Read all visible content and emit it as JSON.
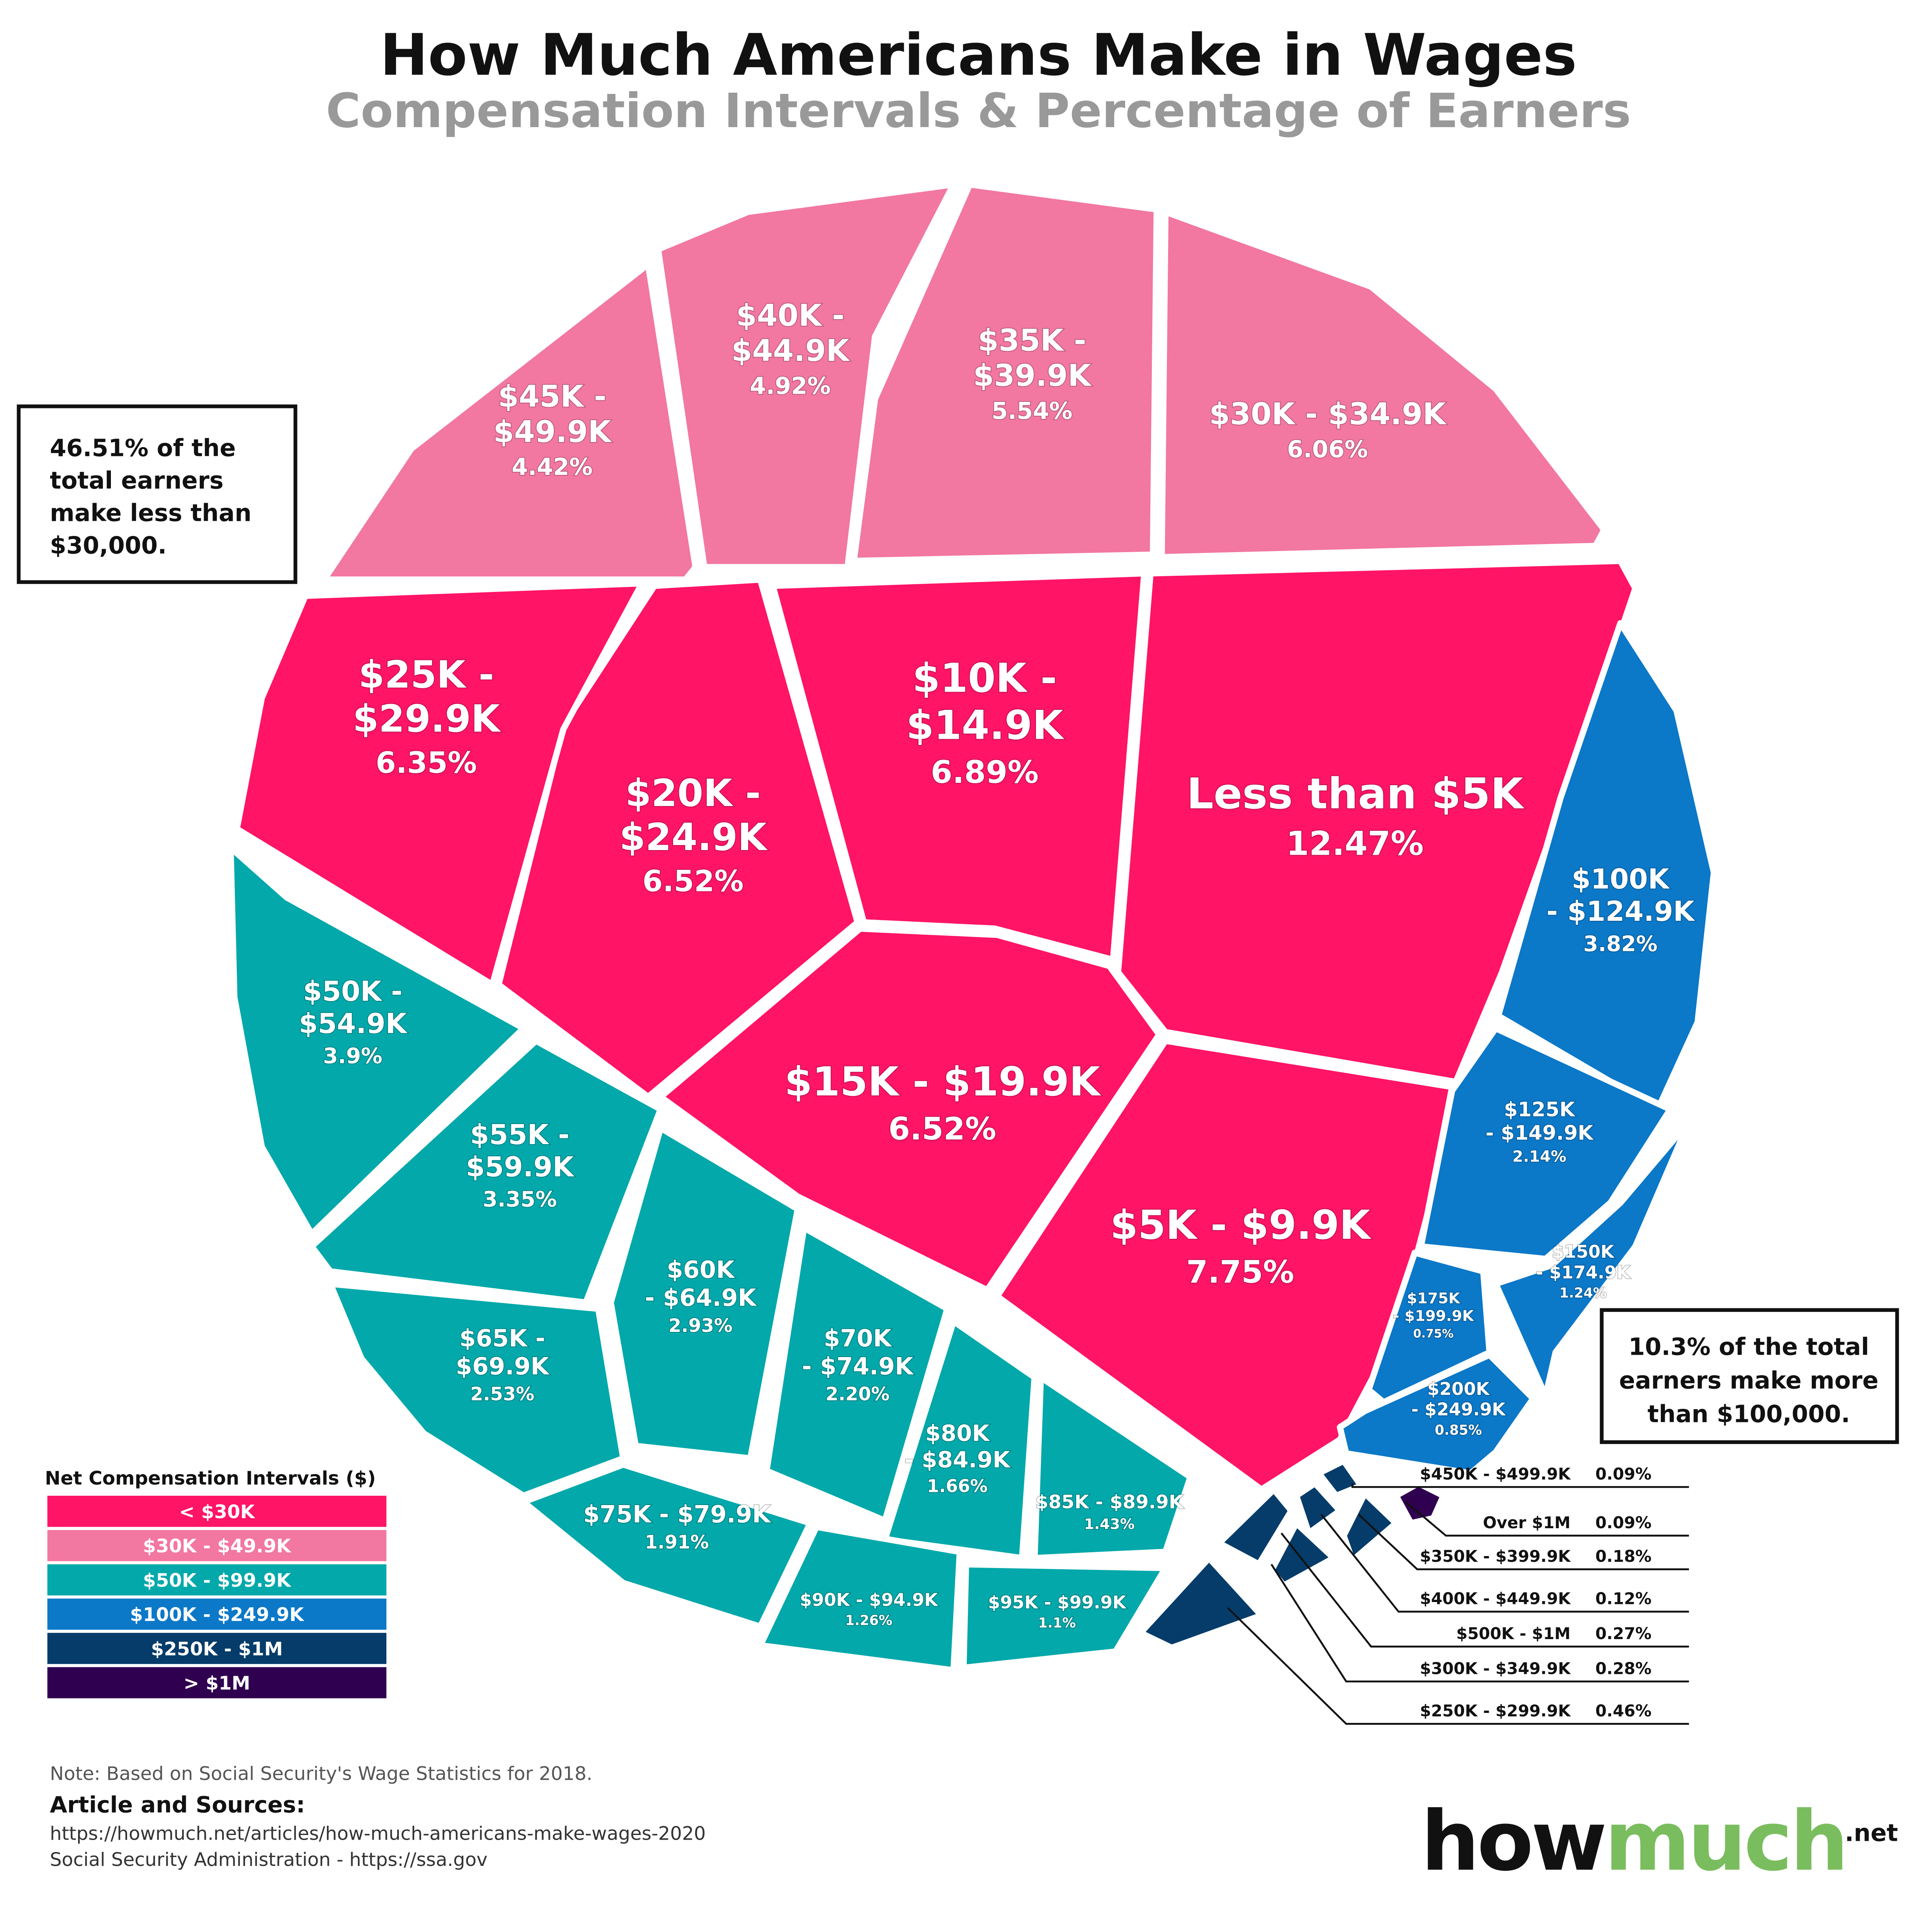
{
  "chart_data": {
    "type": "voronoi-treemap",
    "title": "How Much Americans Make in Wages",
    "subtitle": "Compensation Intervals & Percentage of Earners",
    "unit": "% of earners",
    "legend": {
      "title": "Net Compensation Intervals ($)",
      "placement": "bottom-left",
      "groups": [
        {
          "label": "< $30K",
          "color": "#FF1466"
        },
        {
          "label": "$30K - $49.9K",
          "color": "#F277A1"
        },
        {
          "label": "$50K - $99.9K",
          "color": "#02A8AA"
        },
        {
          "label": "$100K - $249.9K",
          "color": "#0B78C8"
        },
        {
          "label": "$250K - $1M",
          "color": "#053C6A"
        },
        {
          "label": "> $1M",
          "color": "#300050"
        }
      ]
    },
    "cells": [
      {
        "label": "Less than $5K",
        "lines": [
          "Less than $5K"
        ],
        "value": "12.47%",
        "group": 0
      },
      {
        "label": "$5K - $9.9K",
        "lines": [
          "$5K - $9.9K"
        ],
        "value": "7.75%",
        "group": 0
      },
      {
        "label": "$10K - $14.9K",
        "lines": [
          "$10K -",
          "$14.9K"
        ],
        "value": "6.89%",
        "group": 0
      },
      {
        "label": "$15K - $19.9K",
        "lines": [
          "$15K - $19.9K"
        ],
        "value": "6.52%",
        "group": 0
      },
      {
        "label": "$20K - $24.9K",
        "lines": [
          "$20K -",
          "$24.9K"
        ],
        "value": "6.52%",
        "group": 0
      },
      {
        "label": "$25K - $29.9K",
        "lines": [
          "$25K -",
          "$29.9K"
        ],
        "value": "6.35%",
        "group": 0
      },
      {
        "label": "$30K - $34.9K",
        "lines": [
          "$30K - $34.9K"
        ],
        "value": "6.06%",
        "group": 1
      },
      {
        "label": "$35K - $39.9K",
        "lines": [
          "$35K -",
          "$39.9K"
        ],
        "value": "5.54%",
        "group": 1
      },
      {
        "label": "$40K - $44.9K",
        "lines": [
          "$40K -",
          "$44.9K"
        ],
        "value": "4.92%",
        "group": 1
      },
      {
        "label": "$45K - $49.9K",
        "lines": [
          "$45K -",
          "$49.9K"
        ],
        "value": "4.42%",
        "group": 1
      },
      {
        "label": "$50K - $54.9K",
        "lines": [
          "$50K -",
          "$54.9K"
        ],
        "value": "3.9%",
        "group": 2
      },
      {
        "label": "$55K - $59.9K",
        "lines": [
          "$55K -",
          "$59.9K"
        ],
        "value": "3.35%",
        "group": 2
      },
      {
        "label": "$60K - $64.9K",
        "lines": [
          "$60K",
          "- $64.9K"
        ],
        "value": "2.93%",
        "group": 2
      },
      {
        "label": "$65K - $69.9K",
        "lines": [
          "$65K -",
          "$69.9K"
        ],
        "value": "2.53%",
        "group": 2
      },
      {
        "label": "$70K - $74.9K",
        "lines": [
          "$70K",
          "- $74.9K"
        ],
        "value": "2.20%",
        "group": 2
      },
      {
        "label": "$75K - $79.9K",
        "lines": [
          "$75K - $79.9K"
        ],
        "value": "1.91%",
        "group": 2
      },
      {
        "label": "$80K - $84.9K",
        "lines": [
          "$80K",
          "- $84.9K"
        ],
        "value": "1.66%",
        "group": 2
      },
      {
        "label": "$85K - $89.9K",
        "lines": [
          "$85K - $89.9K"
        ],
        "value": "1.43%",
        "group": 2
      },
      {
        "label": "$90K - $94.9K",
        "lines": [
          "$90K - $94.9K"
        ],
        "value": "1.26%",
        "group": 2
      },
      {
        "label": "$95K - $99.9K",
        "lines": [
          "$95K - $99.9K"
        ],
        "value": "1.1%",
        "group": 2
      },
      {
        "label": "$100K - $124.9K",
        "lines": [
          "$100K",
          "- $124.9K"
        ],
        "value": "3.82%",
        "group": 3
      },
      {
        "label": "$125K - $149.9K",
        "lines": [
          "$125K",
          "- $149.9K"
        ],
        "value": "2.14%",
        "group": 3
      },
      {
        "label": "$150K - $174.9K",
        "lines": [
          "$150K",
          "- $174.9K"
        ],
        "value": "1.24%",
        "group": 3
      },
      {
        "label": "$175K - $199.9K",
        "lines": [
          "$175K",
          "- $199.9K"
        ],
        "value": "0.75%",
        "group": 3
      },
      {
        "label": "$200K - $249.9K",
        "lines": [
          "$200K",
          "- $249.9K"
        ],
        "value": "0.85%",
        "group": 3
      },
      {
        "label": "$250K - $299.9K",
        "value": "0.46%",
        "group": 4
      },
      {
        "label": "$300K - $349.9K",
        "value": "0.28%",
        "group": 4
      },
      {
        "label": "$350K - $399.9K",
        "value": "0.18%",
        "group": 4
      },
      {
        "label": "$400K - $449.9K",
        "value": "0.12%",
        "group": 4
      },
      {
        "label": "$450K - $499.9K",
        "value": "0.09%",
        "group": 4
      },
      {
        "label": "$500K - $1M",
        "value": "0.27%",
        "group": 4
      },
      {
        "label": "Over $1M",
        "value": "0.09%",
        "group": 5
      }
    ],
    "callouts": {
      "left": [
        "46.51% of the",
        "total earners",
        "make less than",
        "$30,000."
      ],
      "right": [
        "10.3% of the total",
        "earners make more",
        "than $100,000."
      ]
    }
  },
  "footer": {
    "note": "Note: Based on Social Security's Wage Statistics for 2018.",
    "sources_heading": "Article and Sources:",
    "source_1": "https://howmuch.net/articles/how-much-americans-make-wages-2020",
    "source_2": "Social Security Administration - https://ssa.gov"
  },
  "logo": {
    "part1": "how",
    "part2": "much",
    "suffix": ".net",
    "color": "#7ABD5E"
  }
}
